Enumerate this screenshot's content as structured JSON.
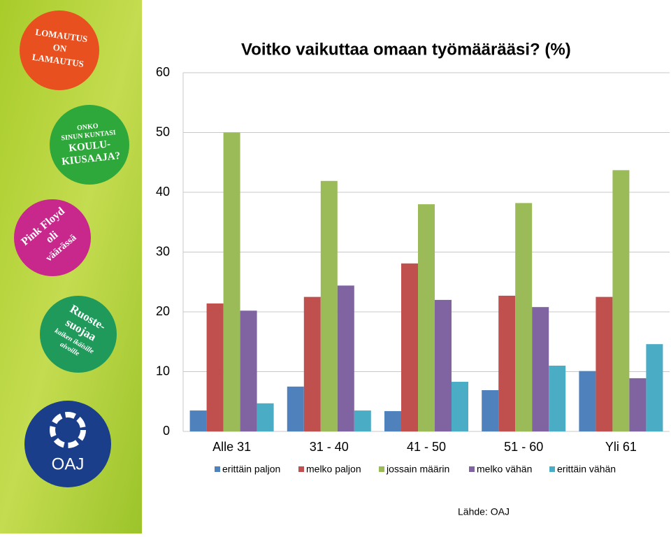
{
  "badges": [
    {
      "lines": [
        "LOMAUTUS",
        "ON",
        "LAMAUTUS"
      ]
    },
    {
      "lines": [
        "ONKO",
        "SINUN KUNTASI",
        "KOULU-",
        "KIUSAAJA?"
      ]
    },
    {
      "lines": [
        "Pink Floyd",
        "oli",
        "väärässä"
      ]
    },
    {
      "lines": [
        "Ruoste-",
        "suojaa",
        "kaiken ikäisille",
        "aivoille"
      ]
    },
    {
      "lines": [
        "OAJ"
      ]
    }
  ],
  "chart_data": {
    "type": "bar",
    "title": "Voitko vaikuttaa omaan työmäärääsi? (%)",
    "categories": [
      "Alle 31",
      "31 - 40",
      "41 - 50",
      "51 - 60",
      "Yli 61"
    ],
    "series": [
      {
        "name": "erittäin paljon",
        "color": "#4f81bd",
        "values": [
          3.5,
          7.5,
          3.4,
          6.9,
          10.1
        ]
      },
      {
        "name": "melko paljon",
        "color": "#c0504d",
        "values": [
          21.4,
          22.5,
          28.1,
          22.7,
          22.5
        ]
      },
      {
        "name": "jossain määrin",
        "color": "#9bbb59",
        "values": [
          50,
          41.9,
          38.0,
          38.2,
          43.7
        ]
      },
      {
        "name": "melko vähän",
        "color": "#8064a2",
        "values": [
          20.2,
          24.4,
          22.0,
          20.8,
          8.9
        ]
      },
      {
        "name": "erittäin vähän",
        "color": "#4bacc6",
        "values": [
          4.7,
          3.5,
          8.3,
          11.0,
          14.6
        ]
      }
    ],
    "ylim": [
      0,
      60
    ],
    "yticks": [
      0,
      10,
      20,
      30,
      40,
      50,
      60
    ],
    "grid": true,
    "source": "Lähde: OAJ"
  }
}
